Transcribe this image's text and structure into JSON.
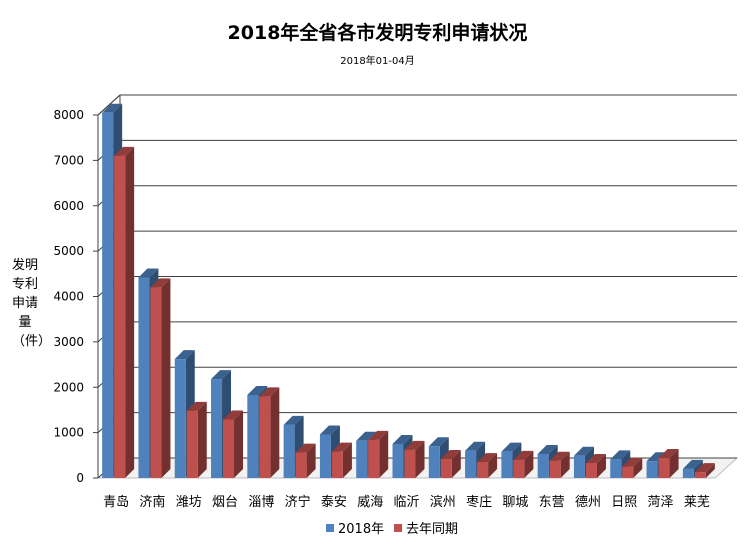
{
  "chart_data": {
    "type": "bar",
    "title": "2018年全省各市发明专利申请状况",
    "subtitle": "2018年01-04月",
    "ylabel": "发明专利申请量（件）",
    "xlabel": "",
    "ylim": [
      0,
      8000
    ],
    "yticks": [
      0,
      1000,
      2000,
      3000,
      4000,
      5000,
      6000,
      7000,
      8000
    ],
    "grid": true,
    "legend_position": "bottom",
    "categories": [
      "青岛",
      "济南",
      "潍坊",
      "烟台",
      "淄博",
      "济宁",
      "泰安",
      "威海",
      "临沂",
      "滨州",
      "枣庄",
      "聊城",
      "东营",
      "德州",
      "日照",
      "菏泽",
      "莱芜"
    ],
    "series": [
      {
        "name": "2018年",
        "color": "#4f81bd",
        "values": [
          8050,
          4420,
          2620,
          2180,
          1830,
          1170,
          960,
          820,
          750,
          700,
          600,
          580,
          530,
          490,
          410,
          370,
          200
        ]
      },
      {
        "name": "去年同期",
        "color": "#c0504d",
        "values": [
          7100,
          4200,
          1480,
          1290,
          1800,
          560,
          580,
          840,
          620,
          420,
          350,
          400,
          380,
          330,
          250,
          440,
          130
        ]
      }
    ]
  }
}
